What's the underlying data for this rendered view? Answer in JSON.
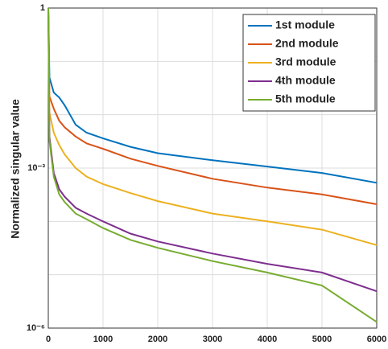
{
  "chart_data": {
    "type": "line",
    "ylabel": "Normalized singular value",
    "x": [
      0,
      20,
      100,
      200,
      300,
      500,
      700,
      1000,
      1500,
      2000,
      3000,
      4000,
      5000,
      6000
    ],
    "series": [
      {
        "name": "1st module",
        "color": "#0072bd",
        "values": [
          1,
          0.05,
          0.026,
          0.021,
          0.015,
          0.0065,
          0.0046,
          0.0036,
          0.0025,
          0.0019,
          0.0014,
          0.00107,
          0.00081,
          0.00053
        ]
      },
      {
        "name": "2nd module",
        "color": "#d95319",
        "values": [
          1,
          0.022,
          0.013,
          0.0077,
          0.0058,
          0.0039,
          0.0029,
          0.0023,
          0.0015,
          0.0011,
          0.00063,
          0.00043,
          0.00032,
          0.00021
        ]
      },
      {
        "name": "3rd module",
        "color": "#edb120",
        "values": [
          1,
          0.011,
          0.0046,
          0.0027,
          0.0018,
          0.001,
          0.00069,
          0.0005,
          0.00034,
          0.00024,
          0.00014,
          0.0001,
          7e-05,
          3.6e-05
        ]
      },
      {
        "name": "4th module",
        "color": "#7e2f8e",
        "values": [
          1,
          0.0039,
          0.00081,
          0.0004,
          0.00029,
          0.00018,
          0.00014,
          0.0001,
          5.9e-05,
          4.2e-05,
          2.5e-05,
          1.6e-05,
          1.1e-05,
          4.9e-06
        ]
      },
      {
        "name": "5th module",
        "color": "#77ac30",
        "values": [
          1,
          0.0033,
          0.00069,
          0.00032,
          0.00023,
          0.00014,
          0.00011,
          7.5e-05,
          4.5e-05,
          3.2e-05,
          1.8e-05,
          1.1e-05,
          6.3e-06,
          1.3e-06
        ]
      }
    ],
    "xlim": [
      0,
      6000
    ],
    "xticks": [
      0,
      1000,
      2000,
      3000,
      4000,
      5000,
      6000
    ],
    "ylim": [
      1e-06,
      1
    ],
    "log_y": true,
    "yticks": [
      {
        "value": 1e-06,
        "label": "10⁻⁶"
      },
      {
        "value": 0.001,
        "label": "10⁻³"
      },
      1
    ],
    "ygrid": [
      1e-05,
      0.0001,
      0.01,
      0.1
    ],
    "grid": true,
    "legend": "upper right"
  }
}
